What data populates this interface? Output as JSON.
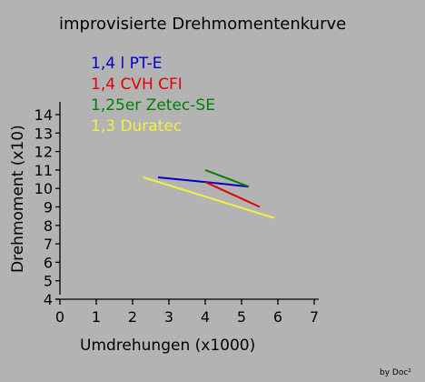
{
  "chart_data": {
    "type": "line",
    "title": "improvisierte Drehmomentenkurve",
    "xlabel": "Umdrehungen (x1000)",
    "ylabel": "Drehmoment (x10)",
    "xlim": [
      0,
      7
    ],
    "ylim": [
      4,
      14
    ],
    "xticks": [
      "0",
      "1",
      "2",
      "3",
      "4",
      "5",
      "6",
      "7"
    ],
    "yticks": [
      "4",
      "5",
      "6",
      "7",
      "8",
      "9",
      "10",
      "11",
      "12",
      "13",
      "14"
    ],
    "grid": false,
    "legend_position": "top-left",
    "series": [
      {
        "name": "1,4 l PT-E",
        "color": "#0000c8",
        "points": [
          [
            2.7,
            10.6
          ],
          [
            4.0,
            10.35
          ],
          [
            5.2,
            10.1
          ]
        ]
      },
      {
        "name": "1,4 CVH CFI",
        "color": "#e00000",
        "points": [
          [
            4.0,
            10.35
          ],
          [
            5.5,
            9.0
          ]
        ]
      },
      {
        "name": "1,25er Zetec-SE",
        "color": "#008000",
        "points": [
          [
            4.0,
            11.0
          ],
          [
            5.2,
            10.1
          ]
        ]
      },
      {
        "name": "1,3 Duratec",
        "color": "#f0f040",
        "points": [
          [
            2.3,
            10.6
          ],
          [
            5.9,
            8.4
          ]
        ]
      }
    ]
  },
  "footer": "by Doc²"
}
